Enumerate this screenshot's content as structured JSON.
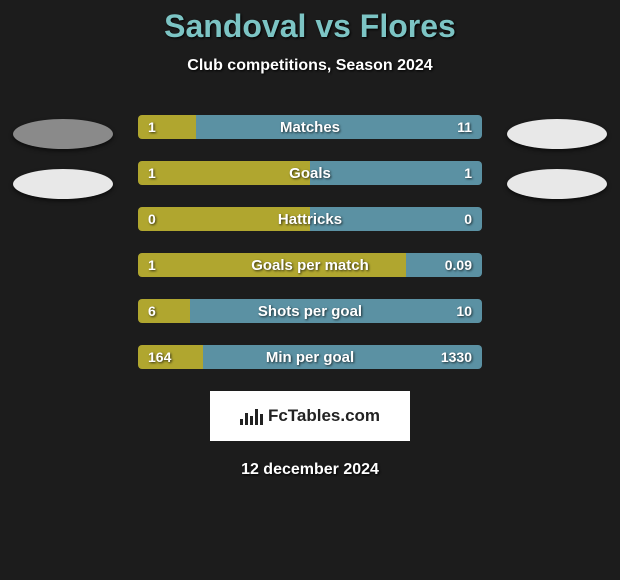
{
  "title": "Sandoval vs Flores",
  "subtitle": "Club competitions, Season 2024",
  "date": "12 december 2024",
  "logo_text": "FcTables.com",
  "colors": {
    "left": "#b0a62f",
    "right": "#5b91a3",
    "title": "#7cc4c4",
    "background": "#1c1c1c",
    "ellipse_left_top": "#8a8a8a",
    "ellipse_left_bottom": "#e8e8e8",
    "ellipse_right_top": "#e8e8e8",
    "ellipse_right_bottom": "#e8e8e8"
  },
  "bars": [
    {
      "label": "Matches",
      "left_val": "1",
      "right_val": "11",
      "left_pct": 17,
      "right_pct": 83
    },
    {
      "label": "Goals",
      "left_val": "1",
      "right_val": "1",
      "left_pct": 50,
      "right_pct": 50
    },
    {
      "label": "Hattricks",
      "left_val": "0",
      "right_val": "0",
      "left_pct": 50,
      "right_pct": 50
    },
    {
      "label": "Goals per match",
      "left_val": "1",
      "right_val": "0.09",
      "left_pct": 78,
      "right_pct": 22
    },
    {
      "label": "Shots per goal",
      "left_val": "6",
      "right_val": "10",
      "left_pct": 15,
      "right_pct": 85
    },
    {
      "label": "Min per goal",
      "left_val": "164",
      "right_val": "1330",
      "left_pct": 19,
      "right_pct": 81
    }
  ]
}
